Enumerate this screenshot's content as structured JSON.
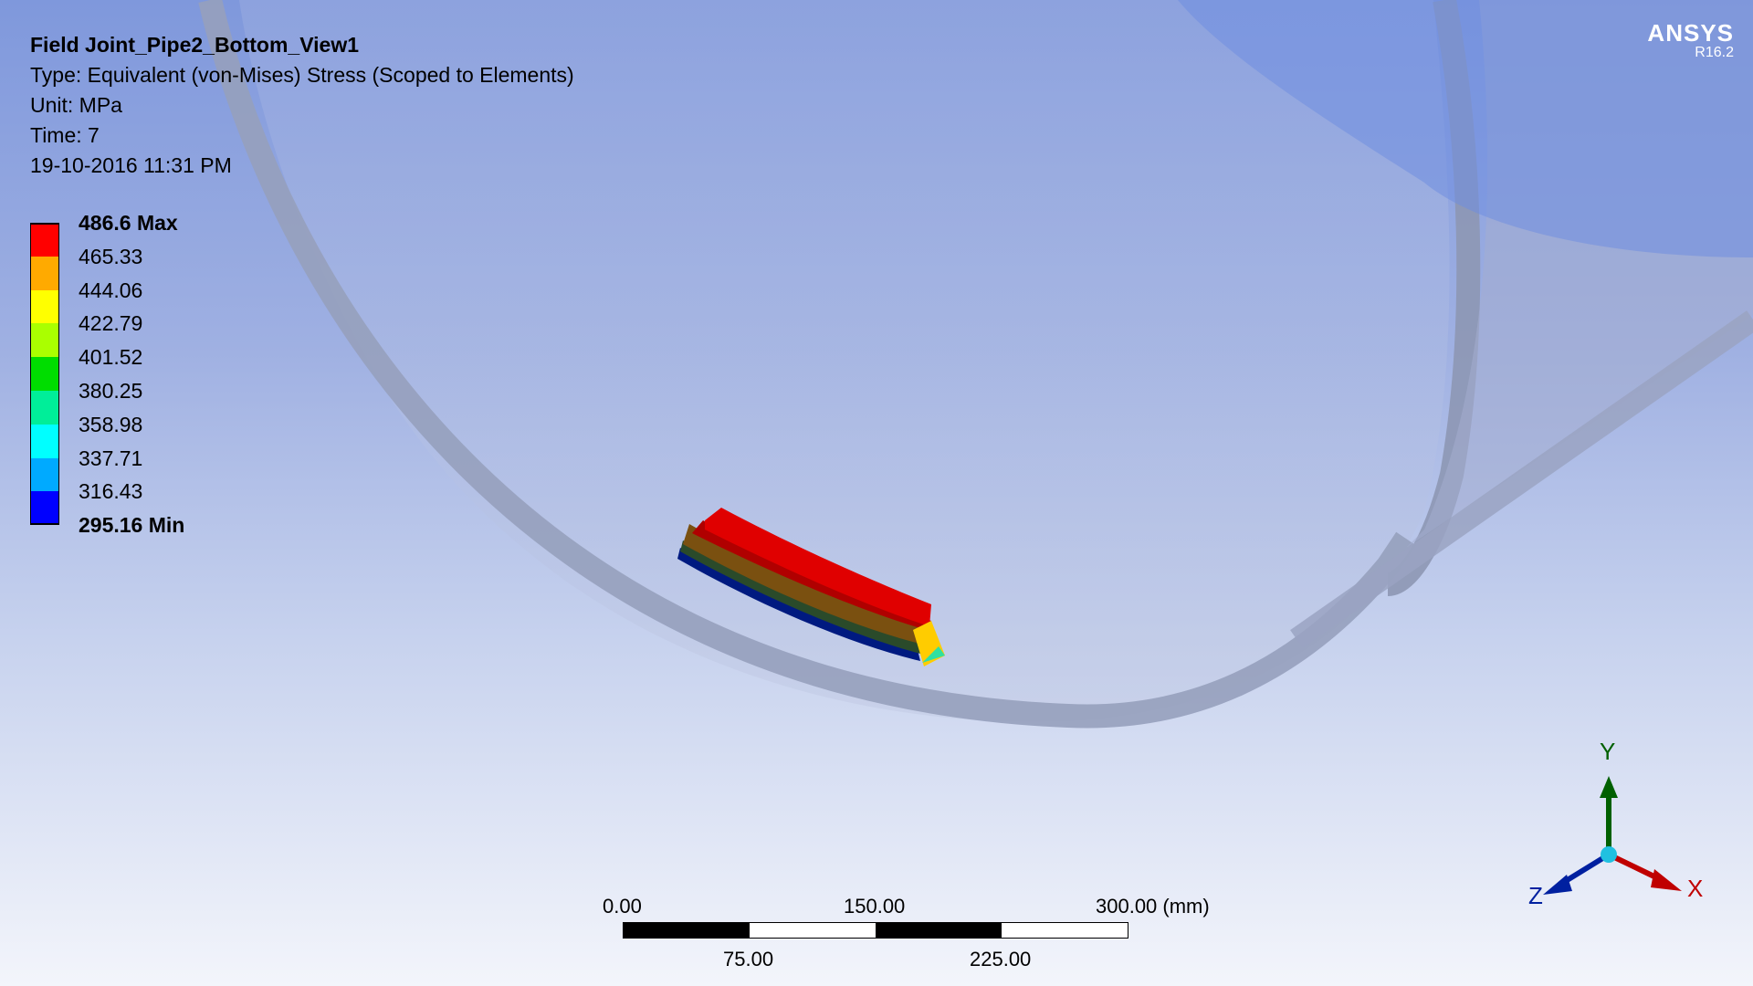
{
  "result": {
    "title": "Field Joint_Pipe2_Bottom_View1",
    "type": "Type: Equivalent (von-Mises) Stress (Scoped to Elements)",
    "unit": "Unit: MPa",
    "time": "Time: 7",
    "date": "19-10-2016 11:31 PM"
  },
  "legend": {
    "labels": [
      "486.6 Max",
      "465.33",
      "444.06",
      "422.79",
      "401.52",
      "380.25",
      "358.98",
      "337.71",
      "316.43",
      "295.16 Min"
    ],
    "colors": [
      "#ff0000",
      "#ffaa00",
      "#ffff00",
      "#aaff00",
      "#00dd00",
      "#00ee99",
      "#00ffff",
      "#00aaff",
      "#0000ff"
    ]
  },
  "logo": {
    "name": "ANSYS",
    "version": "R16.2"
  },
  "scale": {
    "top_labels": [
      "0.00",
      "150.00",
      "300.00 (mm)"
    ],
    "bottom_labels": [
      "75.00",
      "225.00"
    ]
  },
  "triad": {
    "x": "X",
    "y": "Y",
    "z": "Z"
  }
}
